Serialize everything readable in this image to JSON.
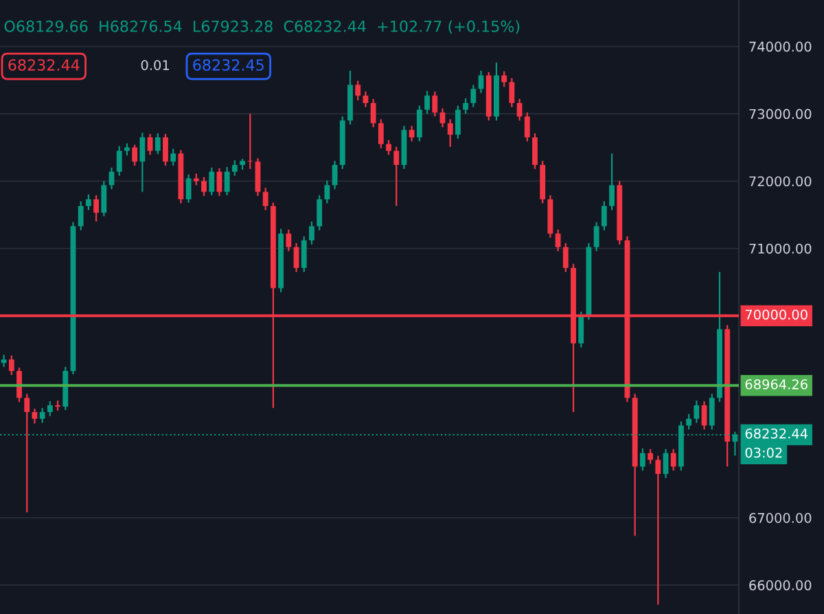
{
  "chart_data": {
    "type": "candlestick",
    "categories": [
      null,
      null,
      null,
      null,
      null,
      null,
      null,
      null,
      null,
      null,
      null,
      null,
      null,
      null,
      null,
      null,
      null,
      null,
      null,
      null,
      null,
      null,
      null,
      null,
      null,
      null,
      null,
      null,
      null,
      null,
      null,
      null,
      null,
      null,
      null,
      null,
      null,
      null,
      null,
      null,
      null,
      null,
      null,
      null,
      null,
      null,
      null,
      null,
      null,
      null,
      null,
      null,
      null,
      null,
      null,
      null,
      null,
      null,
      null,
      null,
      null,
      null,
      null,
      null,
      null,
      null,
      null,
      null,
      null,
      null,
      null,
      null,
      null,
      null,
      null,
      null,
      null,
      null,
      null,
      null,
      null,
      null,
      null,
      null,
      null,
      null,
      null,
      null,
      null,
      null,
      null,
      null,
      null,
      null,
      null,
      null
    ],
    "ohlc": [
      [
        69300,
        69420,
        69240,
        69350
      ],
      [
        69350,
        69410,
        69120,
        69180
      ],
      [
        69180,
        69230,
        68720,
        68780
      ],
      [
        68780,
        68840,
        67080,
        68570
      ],
      [
        68570,
        68620,
        68400,
        68470
      ],
      [
        68470,
        68630,
        68410,
        68570
      ],
      [
        68570,
        68730,
        68510,
        68670
      ],
      [
        68670,
        68740,
        68590,
        68650
      ],
      [
        68650,
        69240,
        68600,
        69180
      ],
      [
        69180,
        71390,
        69130,
        71330
      ],
      [
        71330,
        71700,
        71270,
        71630
      ],
      [
        71630,
        71800,
        71570,
        71730
      ],
      [
        71730,
        71790,
        71400,
        71530
      ],
      [
        71530,
        72000,
        71480,
        71940
      ],
      [
        71940,
        72200,
        71880,
        72140
      ],
      [
        72140,
        72520,
        72080,
        72450
      ],
      [
        72450,
        72560,
        72380,
        72500
      ],
      [
        72500,
        72540,
        72230,
        72290
      ],
      [
        72290,
        72720,
        71840,
        72650
      ],
      [
        72650,
        72700,
        72390,
        72450
      ],
      [
        72450,
        72710,
        72400,
        72650
      ],
      [
        72650,
        72700,
        72230,
        72290
      ],
      [
        72290,
        72480,
        72230,
        72410
      ],
      [
        72410,
        72460,
        71670,
        71730
      ],
      [
        71730,
        72100,
        71680,
        72040
      ],
      [
        72040,
        72110,
        71940,
        72000
      ],
      [
        72000,
        72060,
        71780,
        71840
      ],
      [
        71840,
        72200,
        71790,
        72140
      ],
      [
        72140,
        72190,
        71780,
        71840
      ],
      [
        71840,
        72210,
        71790,
        72140
      ],
      [
        72140,
        72310,
        72080,
        72240
      ],
      [
        72240,
        72330,
        72170,
        72300
      ],
      [
        72300,
        73000,
        72180,
        72290
      ],
      [
        72290,
        72340,
        71780,
        71840
      ],
      [
        71840,
        71900,
        71570,
        71630
      ],
      [
        71630,
        71680,
        68630,
        70410
      ],
      [
        70410,
        71290,
        70350,
        71220
      ],
      [
        71220,
        71280,
        70960,
        71020
      ],
      [
        71020,
        71080,
        70650,
        70710
      ],
      [
        70710,
        71180,
        70650,
        71120
      ],
      [
        71120,
        71400,
        71060,
        71330
      ],
      [
        71330,
        71790,
        71270,
        71730
      ],
      [
        71730,
        72010,
        71670,
        71940
      ],
      [
        71940,
        72300,
        71880,
        72240
      ],
      [
        72240,
        72960,
        72180,
        72900
      ],
      [
        72900,
        73640,
        72840,
        73430
      ],
      [
        73430,
        73490,
        73200,
        73270
      ],
      [
        73270,
        73330,
        73100,
        73160
      ],
      [
        73160,
        73220,
        72800,
        72860
      ],
      [
        72860,
        72920,
        72490,
        72550
      ],
      [
        72550,
        72610,
        72390,
        72450
      ],
      [
        72450,
        72510,
        71630,
        72240
      ],
      [
        72240,
        72820,
        72180,
        72760
      ],
      [
        72760,
        72820,
        72590,
        72650
      ],
      [
        72650,
        73120,
        72590,
        73060
      ],
      [
        73060,
        73340,
        73000,
        73270
      ],
      [
        73270,
        73330,
        72960,
        73020
      ],
      [
        73020,
        73080,
        72800,
        72860
      ],
      [
        72860,
        72920,
        72510,
        72690
      ],
      [
        72690,
        73120,
        72630,
        73060
      ],
      [
        73060,
        73230,
        73000,
        73160
      ],
      [
        73160,
        73430,
        73100,
        73370
      ],
      [
        73370,
        73640,
        73310,
        73570
      ],
      [
        73570,
        73620,
        72900,
        72960
      ],
      [
        72960,
        73760,
        72900,
        73570
      ],
      [
        73570,
        73630,
        73400,
        73470
      ],
      [
        73470,
        73530,
        73100,
        73160
      ],
      [
        73160,
        73220,
        72900,
        72960
      ],
      [
        72960,
        73020,
        72590,
        72650
      ],
      [
        72650,
        72710,
        72180,
        72240
      ],
      [
        72240,
        72300,
        71670,
        71730
      ],
      [
        71730,
        71790,
        71160,
        71220
      ],
      [
        71220,
        71280,
        70960,
        71020
      ],
      [
        71020,
        71080,
        70650,
        70710
      ],
      [
        70710,
        70770,
        68570,
        69590
      ],
      [
        69590,
        70060,
        69530,
        70000
      ],
      [
        70000,
        71080,
        69940,
        71020
      ],
      [
        71020,
        71390,
        70960,
        71330
      ],
      [
        71330,
        71700,
        71270,
        71630
      ],
      [
        71630,
        72410,
        71570,
        71940
      ],
      [
        71940,
        72000,
        71060,
        71120
      ],
      [
        71120,
        71180,
        68720,
        68780
      ],
      [
        68780,
        68840,
        66730,
        67760
      ],
      [
        67760,
        68030,
        67700,
        67960
      ],
      [
        67960,
        68020,
        67800,
        67860
      ],
      [
        67860,
        67920,
        65710,
        67650
      ],
      [
        67650,
        68020,
        67590,
        67960
      ],
      [
        67960,
        68020,
        67700,
        67760
      ],
      [
        67760,
        68430,
        67700,
        68370
      ],
      [
        68370,
        68540,
        68310,
        68470
      ],
      [
        68470,
        68740,
        68410,
        68670
      ],
      [
        68670,
        68730,
        68310,
        68370
      ],
      [
        68370,
        68840,
        68310,
        68780
      ],
      [
        68780,
        70650,
        68720,
        69800
      ],
      [
        69800,
        69860,
        67760,
        68130
      ],
      [
        68129.66,
        68276.54,
        67923.28,
        68232.44
      ]
    ],
    "ylim": [
      65570,
      74690
    ],
    "yticks": [
      {
        "value": 66000,
        "label": "66000.00"
      },
      {
        "value": 67000,
        "label": "67000.00"
      },
      {
        "value": 71000,
        "label": "71000.00"
      },
      {
        "value": 72000,
        "label": "72000.00"
      },
      {
        "value": 73000,
        "label": "73000.00"
      },
      {
        "value": 74000,
        "label": "74000.00"
      }
    ],
    "tick_labels": "y",
    "grid": "y",
    "legend": false,
    "ref_lines": [
      {
        "axis": "y",
        "value": 70000,
        "label": "70000.00",
        "color": "#f23645",
        "line_style": "solid"
      },
      {
        "axis": "y",
        "value": 68964.26,
        "label": "68964.26",
        "color": "#4caf50",
        "line_style": "solid"
      },
      {
        "axis": "y",
        "value": 68232.44,
        "label": "68232.44",
        "color": "#089981",
        "line_style": "dotted"
      }
    ],
    "annotations": [
      "O68129.66  H68276.54  L67923.28  C68232.44  +102.77 (+0.15%)",
      "68232.44",
      "0.01",
      "68232.45",
      "03:02"
    ]
  }
}
